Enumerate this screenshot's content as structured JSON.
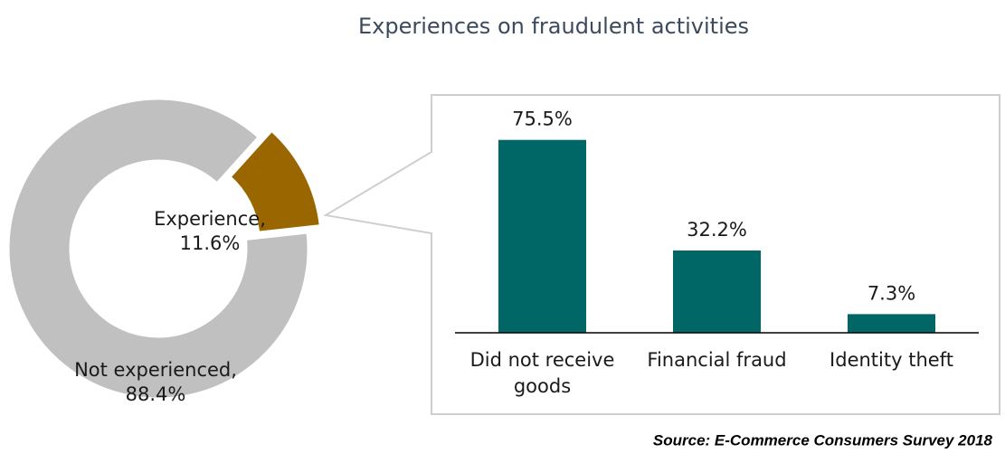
{
  "title": "Experiences on fraudulent activities",
  "source": "Source: E-Commerce Consumers Survey 2018",
  "chart_data": [
    {
      "type": "pie",
      "categories": [
        "Experience,",
        "Not experienced,"
      ],
      "values": [
        11.6,
        88.4
      ],
      "value_labels": [
        "11.6%",
        "88.4%"
      ],
      "colors": [
        "#996600",
        "#c0c0c0"
      ]
    },
    {
      "type": "bar",
      "categories": [
        "Did not receive goods",
        "Financial fraud",
        "Identity theft"
      ],
      "values": [
        75.5,
        32.2,
        7.3
      ],
      "value_labels": [
        "75.5%",
        "32.2%",
        "7.3%"
      ],
      "color": "#006666",
      "ylim": [
        0,
        80
      ]
    }
  ]
}
